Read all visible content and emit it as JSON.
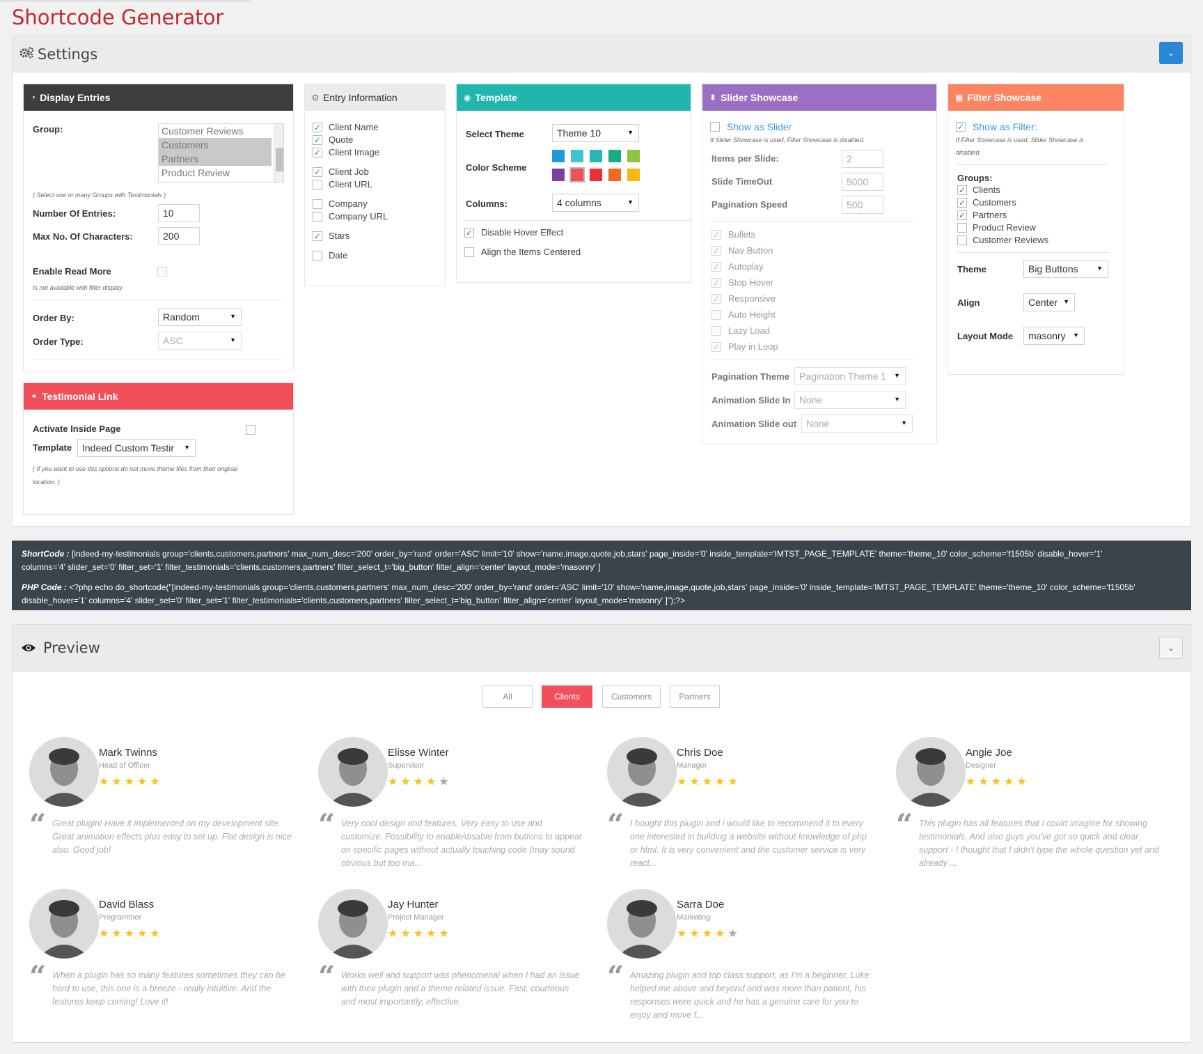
{
  "page_title": "Shortcode Generator",
  "settings": {
    "title": "Settings",
    "display_entries": {
      "title": "Display Entries",
      "group_label": "Group:",
      "group_options": [
        {
          "label": "Customer Reviews",
          "selected": false
        },
        {
          "label": "Customers",
          "selected": true
        },
        {
          "label": "Partners",
          "selected": true
        },
        {
          "label": "Product Review",
          "selected": false
        }
      ],
      "group_note": "( Select one or many Groups with Testimonials )",
      "num_entries_label": "Number Of Entries:",
      "num_entries_value": "10",
      "max_chars_label": "Max No. Of Characters:",
      "max_chars_value": "200",
      "read_more_label": "Enable Read More",
      "read_more_note": "Is not available with filter display.",
      "order_by_label": "Order By:",
      "order_by_value": "Random",
      "order_type_label": "Order Type:",
      "order_type_value": "ASC"
    },
    "testimonial_link": {
      "title": "Testimonial Link",
      "activate_label": "Activate Inside Page",
      "template_label": "Template",
      "template_value": "Indeed Custom Testir",
      "note_line1": "( If you want to use this options do not move theme files from their original",
      "note_line2": "location. )"
    },
    "entry_information": {
      "title": "Entry Information",
      "items": [
        {
          "label": "Client Name",
          "checked": true
        },
        {
          "label": "Quote",
          "checked": true
        },
        {
          "label": "Client Image",
          "checked": true
        },
        {
          "label": "Client Job",
          "checked": true
        },
        {
          "label": "Client URL",
          "checked": false
        },
        {
          "label": "Company",
          "checked": false
        },
        {
          "label": "Company URL",
          "checked": false
        },
        {
          "label": "Stars",
          "checked": true
        },
        {
          "label": "Date",
          "checked": false
        }
      ]
    },
    "template": {
      "title": "Template",
      "select_theme_label": "Select Theme",
      "select_theme_value": "Theme 10",
      "color_scheme_label": "Color Scheme",
      "colors": [
        "#1e9bd7",
        "#3cc7cf",
        "#2ab5b8",
        "#14ad86",
        "#8ec63f",
        "#7a3fa0",
        "#f1505b",
        "#ec2f33",
        "#f06a22",
        "#f6b80f"
      ],
      "selected_color_index": 6,
      "columns_label": "Columns:",
      "columns_value": "4 columns",
      "disable_hover_label": "Disable Hover Effect",
      "align_center_label": "Align the Items Centered"
    },
    "slider_showcase": {
      "title": "Slider Showcase",
      "show_as_slider_label": "Show as Slider",
      "note": "If Slider Showcase is used, Filter Showcase is disabled.",
      "items_per_slide_label": "Items per Slide:",
      "items_per_slide_value": "2",
      "slide_timeout_label": "Slide TimeOut",
      "slide_timeout_value": "5000",
      "pagination_speed_label": "Pagination Speed",
      "pagination_speed_value": "500",
      "options": [
        {
          "label": "Bullets",
          "checked": true
        },
        {
          "label": "Nav Button",
          "checked": true
        },
        {
          "label": "Autoplay",
          "checked": true
        },
        {
          "label": "Stop Hover",
          "checked": true
        },
        {
          "label": "Responsive",
          "checked": true
        },
        {
          "label": "Auto Height",
          "checked": false
        },
        {
          "label": "Lazy Load",
          "checked": false
        },
        {
          "label": "Play in Loop",
          "checked": true
        }
      ],
      "pagination_theme_label": "Pagination Theme",
      "pagination_theme_value": "Pagination Theme 1",
      "anim_in_label": "Animation Slide In",
      "anim_in_value": "None",
      "anim_out_label": "Animation Slide out",
      "anim_out_value": "None"
    },
    "filter_showcase": {
      "title": "Filter Showcase",
      "show_as_filter_label": "Show as Filter:",
      "note_line1": "If Filter Showcase is used, Slider Showcase is",
      "note_line2": "disabled.",
      "groups_label": "Groups:",
      "groups": [
        {
          "label": "Clients",
          "checked": true
        },
        {
          "label": "Customers",
          "checked": true
        },
        {
          "label": "Partners",
          "checked": true
        },
        {
          "label": "Product Review",
          "checked": false
        },
        {
          "label": "Customer Reviews",
          "checked": false
        }
      ],
      "theme_label": "Theme",
      "theme_value": "Big Buttons",
      "align_label": "Align",
      "align_value": "Center",
      "layout_label": "Layout Mode",
      "layout_value": "masonry"
    }
  },
  "code": {
    "shortcode_label": "ShortCode :",
    "shortcode_l1": " [indeed-my-testimonials group='clients,customers,partners' max_num_desc='200' order_by='rand' order='ASC' limit='10' show='name,image,quote,job,stars' page_inside='0' inside_template='IMTST_PAGE_TEMPLATE' theme='theme_10' color_scheme='f1505b' disable_hover='1'",
    "shortcode_l2": "columns='4' slider_set='0' filter_set='1' filter_testimonials='clients,customers,partners' filter_select_t='big_button' filter_align='center' layout_mode='masonry' ]",
    "php_label": "PHP Code :",
    "php_l1": " <?php echo do_shortcode(\"[indeed-my-testimonials group='clients,customers,partners' max_num_desc='200' order_by='rand' order='ASC' limit='10' show='name,image,quote,job,stars' page_inside='0' inside_template='IMTST_PAGE_TEMPLATE' theme='theme_10' color_scheme='f1505b'",
    "php_l2": "disable_hover='1' columns='4' slider_set='0' filter_set='1' filter_testimonials='clients,customers,partners' filter_select_t='big_button' filter_align='center' layout_mode='masonry' ]\");?>"
  },
  "preview": {
    "title": "Preview",
    "filters": [
      "All",
      "Clients",
      "Customers",
      "Partners"
    ],
    "active_filter": "Clients",
    "testimonials": [
      {
        "name": "Mark Twinns",
        "job": "Head of Officer",
        "stars": 5,
        "quote": "Great plugin! Have it implemented on my development site. Great animation effects plus easy to set up. Flat design is nice also. Good job!"
      },
      {
        "name": "Elisse Winter",
        "job": "Supervisor",
        "stars": 4,
        "quote": "Very cool design and features. Very easy to use and customize. Possibility to enable/disable from buttons to appear on specific pages without actually touching code (may sound obvious but too ma..."
      },
      {
        "name": "Chris Doe",
        "job": "Manager",
        "stars": 5,
        "quote": "I bought this plugin and i would like to recommend it to every one interested in building a website without knowledge of php or html. It is very convenient and the customer service is very react..."
      },
      {
        "name": "Angie Joe",
        "job": "Designer",
        "stars": 5,
        "quote": "This plugin has all features that I could imagine for showing testimonials. And also guys you've got so quick and clear support - I thought that I didn't type the whole question yet and already ..."
      },
      {
        "name": "David Blass",
        "job": "Programmer",
        "stars": 5,
        "quote": "When a plugin has so many features sometimes they can be hard to use, this one is a breeze - really intuitive. And the features keep coming! Love it!"
      },
      {
        "name": "Jay Hunter",
        "job": "Project Manager",
        "stars": 5,
        "quote": "Works well and support was phenomenal when I had an issue with their plugin and a theme related issue. Fast, courteous and most importantly, effective."
      },
      {
        "name": "Sarra Doe",
        "job": "Marketing",
        "stars": 4,
        "quote": "Amazing plugin and top class support, as I'm a beginner, Luke helped me above and beyond and was more than patient, his responses were quick and he has a genuine care for you to enjoy and move f..."
      }
    ]
  }
}
